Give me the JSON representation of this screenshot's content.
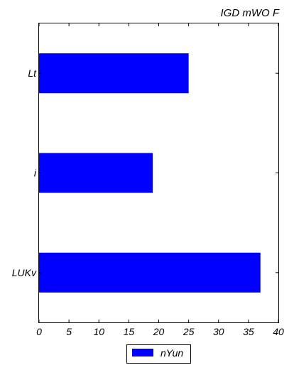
{
  "chart_data": {
    "type": "bar",
    "orientation": "horizontal",
    "title": "IGD mWO F",
    "xlabel": "",
    "ylabel": "",
    "categories": [
      "Lt",
      "i",
      "LUKv"
    ],
    "series": [
      {
        "name": "nYun",
        "values": [
          25,
          19,
          37
        ]
      }
    ],
    "xlim": [
      0,
      40
    ],
    "xticks": [
      0,
      5,
      10,
      15,
      20,
      25,
      30,
      35,
      40
    ],
    "grid": false,
    "legend_position": "bottom",
    "colors": {
      "bar": "#0000ff"
    }
  }
}
